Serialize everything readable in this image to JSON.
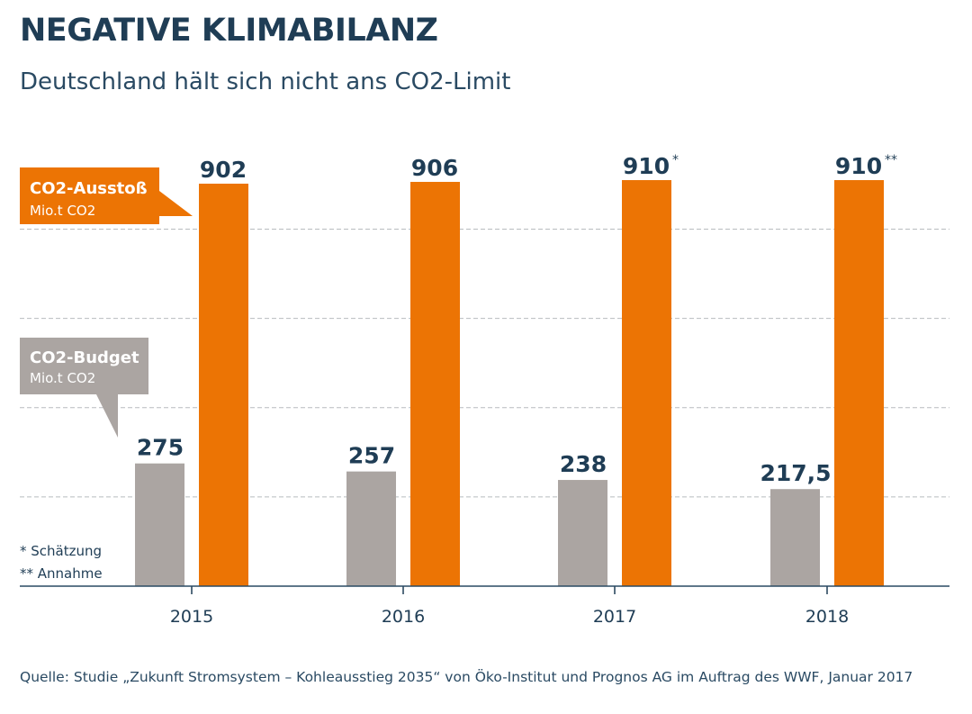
{
  "title": "NEGATIVE KLIMABILANZ",
  "subtitle": "Deutschland hält sich nicht ans CO2-Limit",
  "source": "Quelle: Studie „Zukunft Stromsystem – Kohleausstieg 2035“ von Öko-Institut und Prognos AG im Auftrag des WWF, Januar 2017",
  "footnotes": [
    "* Schätzung",
    "** Annahme"
  ],
  "colors": {
    "emissions": "#ec7404",
    "budget": "#aba5a2",
    "text": "#1f3d55"
  },
  "chart_data": {
    "type": "bar",
    "categories": [
      "2015",
      "2016",
      "2017",
      "2018"
    ],
    "series": [
      {
        "name": "CO2-Budget",
        "unit": "Mio.t CO2",
        "values": [
          275,
          257,
          238,
          217.5
        ],
        "labels": [
          "275",
          "257",
          "238",
          "217,5"
        ],
        "markers": [
          "",
          "",
          "",
          ""
        ]
      },
      {
        "name": "CO2-Ausstoß",
        "unit": "Mio.t CO2",
        "values": [
          902,
          906,
          910,
          910
        ],
        "labels": [
          "902",
          "906",
          "910",
          "910"
        ],
        "markers": [
          "",
          "",
          "*",
          "**"
        ]
      }
    ],
    "ylim": [
      0,
      1000
    ],
    "gridlines": [
      200,
      400,
      600,
      800
    ],
    "grid": true,
    "legend": "left (callouts)"
  }
}
